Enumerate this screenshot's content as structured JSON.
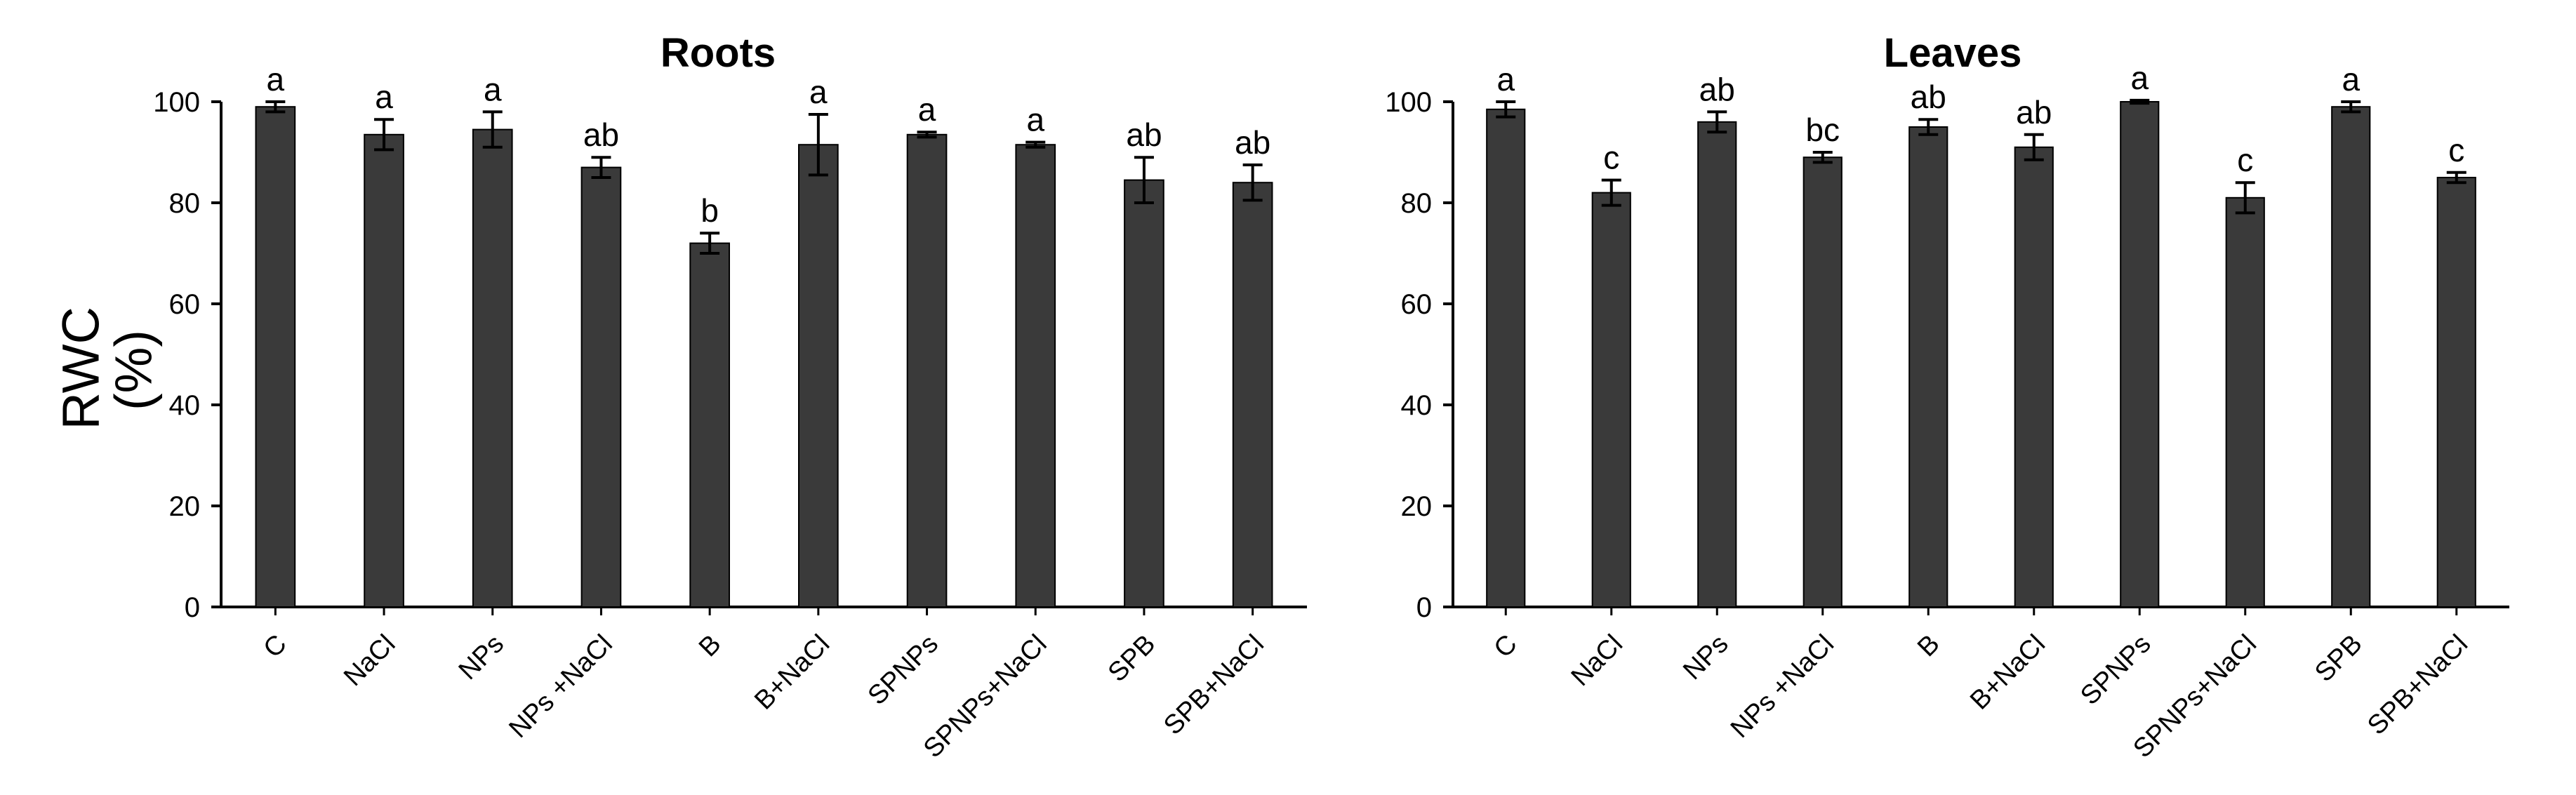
{
  "y_axis_title": [
    "RWC",
    "(%)"
  ],
  "colors": {
    "bar": "#3a3a3a",
    "axis": "#000000"
  },
  "chart_data": [
    {
      "type": "bar",
      "title": "Roots",
      "categories": [
        "C",
        "NaCl",
        "NPs",
        "NPs +NaCl",
        "B",
        "B+NaCl",
        "SPNPs",
        "SPNPs+NaCl",
        "SPB",
        "SPB+NaCl"
      ],
      "values": [
        99,
        93.5,
        94.5,
        87,
        72,
        91.5,
        93.5,
        91.5,
        84.5,
        84
      ],
      "errors": [
        1,
        3,
        3.5,
        2,
        2,
        6,
        0.5,
        0.5,
        4.5,
        3.5
      ],
      "letters": [
        "a",
        "a",
        "a",
        "ab",
        "b",
        "a",
        "a",
        "a",
        "ab",
        "ab"
      ],
      "ylim": [
        0,
        100
      ],
      "yticks": [
        0,
        20,
        40,
        60,
        80,
        100
      ],
      "grid": false
    },
    {
      "type": "bar",
      "title": "Leaves",
      "categories": [
        "C",
        "NaCl",
        "NPs",
        "NPs +NaCl",
        "B",
        "B+NaCl",
        "SPNPs",
        "SPNPs+NaCl",
        "SPB",
        "SPB+NaCl"
      ],
      "values": [
        98.5,
        82,
        96,
        89,
        95,
        91,
        100,
        81,
        99,
        85
      ],
      "errors": [
        1.5,
        2.5,
        2,
        1,
        1.5,
        2.5,
        0.3,
        3,
        1,
        1
      ],
      "letters": [
        "a",
        "c",
        "ab",
        "bc",
        "ab",
        "ab",
        "a",
        "c",
        "a",
        "c"
      ],
      "ylim": [
        0,
        100
      ],
      "yticks": [
        0,
        20,
        40,
        60,
        80,
        100
      ],
      "grid": false
    }
  ]
}
